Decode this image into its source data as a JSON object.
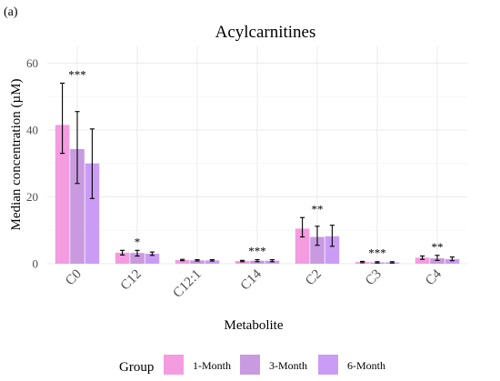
{
  "panel_label": "(a)",
  "chart_data": {
    "type": "bar",
    "title": "Acylcarnitines",
    "xlabel": "Metabolite",
    "ylabel": "Median concentration (µM)",
    "ylim": [
      0,
      65
    ],
    "yticks": [
      0,
      20,
      40,
      60
    ],
    "grid": true,
    "legend_position": "bottom",
    "legend_title": "Group",
    "categories": [
      "C0",
      "C12",
      "C12:1",
      "C14",
      "C2",
      "C3",
      "C4"
    ],
    "series": [
      {
        "name": "1-Month",
        "color": "#f49ce0",
        "values": [
          41.5,
          3.3,
          1.1,
          0.8,
          10.5,
          0.5,
          1.8
        ],
        "error": [
          [
            33,
            54
          ],
          [
            2.6,
            4.0
          ],
          [
            0.9,
            1.3
          ],
          [
            0.6,
            1.0
          ],
          [
            8.0,
            13.8
          ],
          [
            0.3,
            0.7
          ],
          [
            1.3,
            2.3
          ]
        ]
      },
      {
        "name": "3-Month",
        "color": "#c99ae0",
        "values": [
          34.3,
          3.2,
          1.0,
          0.9,
          8.0,
          0.4,
          1.6
        ],
        "error": [
          [
            24,
            45.5
          ],
          [
            2.3,
            4.0
          ],
          [
            0.8,
            1.2
          ],
          [
            0.6,
            1.2
          ],
          [
            5.5,
            11.2
          ],
          [
            0.2,
            0.6
          ],
          [
            1.0,
            2.5
          ]
        ]
      },
      {
        "name": "6-Month",
        "color": "#cb9cf6",
        "values": [
          30.0,
          3.0,
          1.0,
          0.9,
          8.2,
          0.4,
          1.4
        ],
        "error": [
          [
            19.5,
            40.3
          ],
          [
            2.5,
            3.5
          ],
          [
            0.8,
            1.2
          ],
          [
            0.6,
            1.2
          ],
          [
            5.2,
            11.5
          ],
          [
            0.2,
            0.6
          ],
          [
            0.9,
            2.0
          ]
        ]
      }
    ],
    "significance": [
      "***",
      "*",
      "",
      "***",
      "**",
      "***",
      "**"
    ]
  }
}
